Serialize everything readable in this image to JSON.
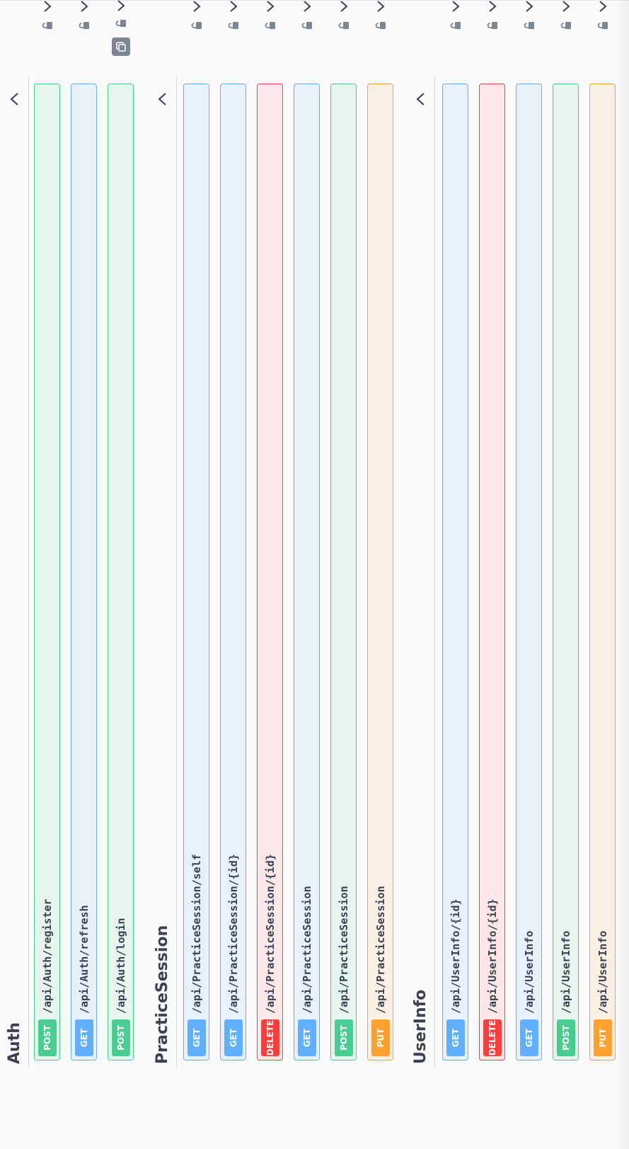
{
  "colors": {
    "get": "#61affe",
    "post": "#49cc90",
    "delete": "#f93e3e",
    "put": "#fca130",
    "text": "#3b4151",
    "background": "#fafafa"
  },
  "sections": {
    "auth": {
      "title": "Auth",
      "ops": [
        {
          "method": "POST",
          "path": "/api/Auth/register",
          "icon": "lock-icon"
        },
        {
          "method": "GET",
          "path": "/api/Auth/refresh",
          "icon": "lock-icon"
        },
        {
          "method": "POST",
          "path": "/api/Auth/login",
          "icon": "lock-icon",
          "extra_icon": "copy-icon"
        }
      ]
    },
    "practice": {
      "title": "PracticeSession",
      "ops": [
        {
          "method": "GET",
          "path": "/api/PracticeSession/self",
          "icon": "lock-icon"
        },
        {
          "method": "GET",
          "path": "/api/PracticeSession/{id}",
          "icon": "lock-icon"
        },
        {
          "method": "DELETE",
          "path": "/api/PracticeSession/{id}",
          "icon": "lock-icon"
        },
        {
          "method": "GET",
          "path": "/api/PracticeSession",
          "icon": "lock-icon"
        },
        {
          "method": "POST",
          "path": "/api/PracticeSession",
          "icon": "lock-icon"
        },
        {
          "method": "PUT",
          "path": "/api/PracticeSession",
          "icon": "lock-icon"
        }
      ]
    },
    "userinfo": {
      "title": "UserInfo",
      "ops": [
        {
          "method": "GET",
          "path": "/api/UserInfo/{id}",
          "icon": "lock-icon"
        },
        {
          "method": "DELETE",
          "path": "/api/UserInfo/{id}",
          "icon": "lock-icon"
        },
        {
          "method": "GET",
          "path": "/api/UserInfo",
          "icon": "lock-icon"
        },
        {
          "method": "POST",
          "path": "/api/UserInfo",
          "icon": "lock-icon"
        },
        {
          "method": "PUT",
          "path": "/api/UserInfo",
          "icon": "lock-icon"
        }
      ]
    }
  }
}
